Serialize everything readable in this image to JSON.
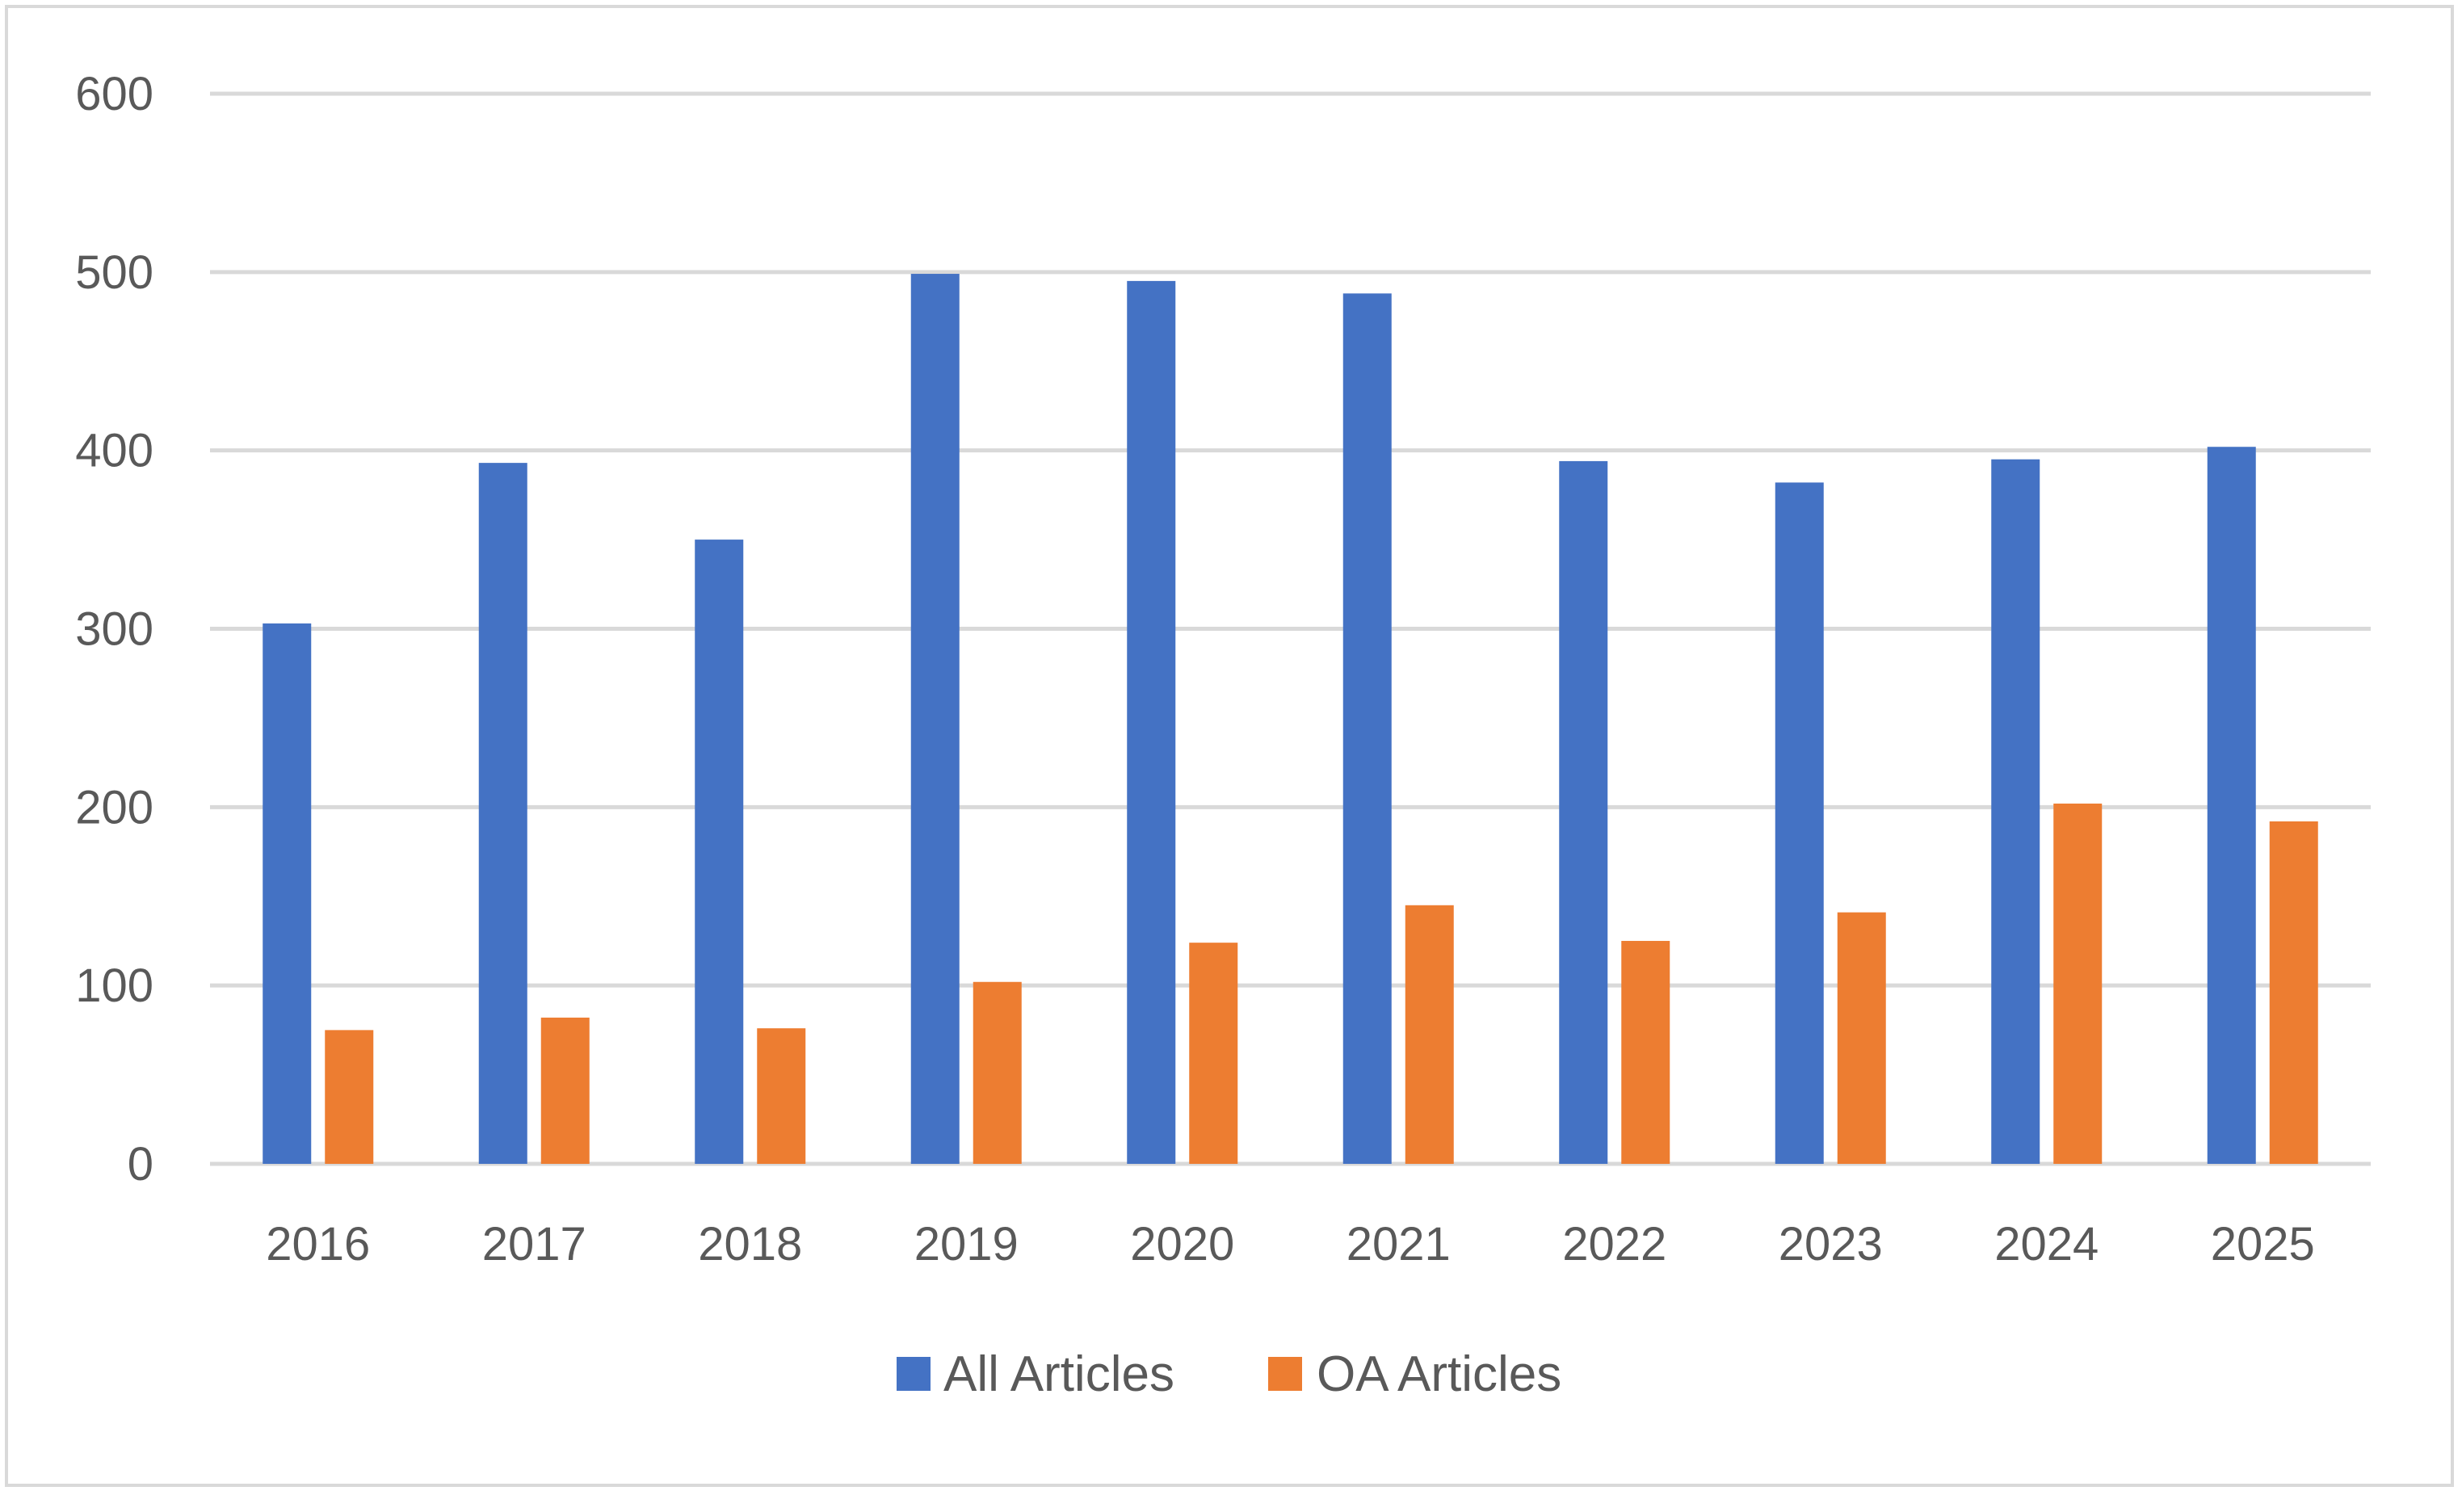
{
  "chart_data": {
    "type": "bar",
    "title": "",
    "xlabel": "",
    "ylabel": "",
    "ylim": [
      0,
      600
    ],
    "yticks": [
      0,
      100,
      200,
      300,
      400,
      500,
      600
    ],
    "ytick_labels": [
      "0",
      "100",
      "200",
      "300",
      "400",
      "500",
      "600"
    ],
    "grid": true,
    "legend_position": "bottom",
    "categories": [
      "2016",
      "2017",
      "2018",
      "2019",
      "2020",
      "2021",
      "2022",
      "2023",
      "2024",
      "2025"
    ],
    "series": [
      {
        "name": "All Articles",
        "color": "#4472c4",
        "values": [
          303,
          393,
          350,
          499,
          495,
          488,
          394,
          382,
          395,
          402
        ]
      },
      {
        "name": "OA Articles",
        "color": "#ed7d31",
        "values": [
          75,
          82,
          76,
          102,
          124,
          145,
          125,
          141,
          202,
          192
        ]
      }
    ],
    "colors": {
      "grid": "#d9d9d9",
      "text": "#595959"
    }
  }
}
